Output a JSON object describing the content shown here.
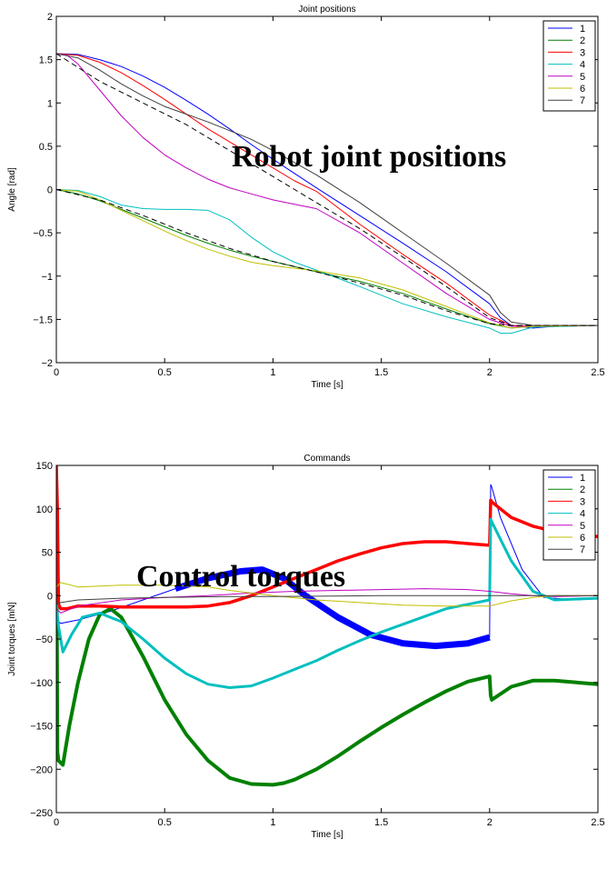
{
  "chart_data": [
    {
      "type": "line",
      "title": "Joint positions",
      "xlabel": "Time [s]",
      "ylabel": "Angle [rad]",
      "xlim": [
        0,
        2.5
      ],
      "ylim": [
        -2,
        2
      ],
      "xticks": [
        0,
        0.5,
        1,
        1.5,
        2,
        2.5
      ],
      "xtick_labels": [
        "0",
        "0.5",
        "1",
        "1.5",
        "2",
        "2.5"
      ],
      "yticks": [
        -2,
        -1.5,
        -1,
        -0.5,
        0,
        0.5,
        1,
        1.5,
        2
      ],
      "ytick_labels": [
        "−2",
        "−1.5",
        "−1",
        "−0.5",
        "0",
        "0.5",
        "1",
        "1.5",
        "2"
      ],
      "grid": false,
      "legend_position": "top-right",
      "annotation": "Robot joint positions",
      "series": [
        {
          "name": "1",
          "color": "#0000ff",
          "x": [
            0,
            0.1,
            0.2,
            0.3,
            0.4,
            0.5,
            0.6,
            0.7,
            0.8,
            0.9,
            1.0,
            1.2,
            1.4,
            1.6,
            1.8,
            2.0,
            2.05,
            2.1,
            2.2,
            2.3,
            2.5
          ],
          "y": [
            1.57,
            1.56,
            1.5,
            1.42,
            1.31,
            1.18,
            1.03,
            0.87,
            0.7,
            0.52,
            0.35,
            0.02,
            -0.3,
            -0.62,
            -0.95,
            -1.32,
            -1.48,
            -1.57,
            -1.6,
            -1.58,
            -1.57
          ]
        },
        {
          "name": "2",
          "color": "#008000",
          "x": [
            0,
            0.1,
            0.2,
            0.3,
            0.4,
            0.5,
            0.6,
            0.7,
            0.8,
            0.9,
            1.0,
            1.2,
            1.4,
            1.6,
            1.8,
            2.0,
            2.1,
            2.2,
            2.5
          ],
          "y": [
            0,
            -0.05,
            -0.13,
            -0.23,
            -0.33,
            -0.43,
            -0.53,
            -0.62,
            -0.7,
            -0.77,
            -0.83,
            -0.95,
            -1.06,
            -1.2,
            -1.38,
            -1.55,
            -1.6,
            -1.58,
            -1.57
          ]
        },
        {
          "name": "3",
          "color": "#ff0000",
          "x": [
            0,
            0.1,
            0.2,
            0.3,
            0.4,
            0.5,
            0.6,
            0.7,
            0.8,
            0.9,
            1.0,
            1.1,
            1.2,
            1.4,
            1.6,
            1.8,
            2.0,
            2.1,
            2.2,
            2.5
          ],
          "y": [
            1.57,
            1.55,
            1.47,
            1.35,
            1.2,
            1.04,
            0.87,
            0.7,
            0.55,
            0.4,
            0.25,
            0.1,
            -0.02,
            -0.4,
            -0.75,
            -1.08,
            -1.45,
            -1.57,
            -1.58,
            -1.57
          ]
        },
        {
          "name": "4",
          "color": "#00bfbf",
          "x": [
            0,
            0.1,
            0.2,
            0.3,
            0.4,
            0.5,
            0.6,
            0.7,
            0.8,
            0.9,
            1.0,
            1.1,
            1.2,
            1.4,
            1.6,
            1.8,
            2.0,
            2.05,
            2.1,
            2.2,
            2.5
          ],
          "y": [
            0,
            -0.01,
            -0.08,
            -0.18,
            -0.22,
            -0.23,
            -0.23,
            -0.24,
            -0.35,
            -0.55,
            -0.72,
            -0.84,
            -0.93,
            -1.12,
            -1.32,
            -1.47,
            -1.6,
            -1.66,
            -1.66,
            -1.59,
            -1.57
          ]
        },
        {
          "name": "5",
          "color": "#bf00bf",
          "x": [
            0,
            0.05,
            0.1,
            0.2,
            0.3,
            0.4,
            0.5,
            0.6,
            0.7,
            0.8,
            0.9,
            1.0,
            1.1,
            1.2,
            1.4,
            1.6,
            1.8,
            2.0,
            2.1,
            2.2,
            2.5
          ],
          "y": [
            1.57,
            1.55,
            1.45,
            1.15,
            0.85,
            0.6,
            0.4,
            0.25,
            0.12,
            0.02,
            -0.05,
            -0.12,
            -0.17,
            -0.22,
            -0.5,
            -0.85,
            -1.2,
            -1.5,
            -1.58,
            -1.58,
            -1.57
          ]
        },
        {
          "name": "6",
          "color": "#bfbf00",
          "x": [
            0,
            0.1,
            0.2,
            0.3,
            0.4,
            0.5,
            0.6,
            0.7,
            0.8,
            0.9,
            1.0,
            1.2,
            1.4,
            1.6,
            1.8,
            2.0,
            2.1,
            2.2,
            2.5
          ],
          "y": [
            0,
            -0.02,
            -0.12,
            -0.24,
            -0.36,
            -0.48,
            -0.59,
            -0.69,
            -0.77,
            -0.84,
            -0.88,
            -0.94,
            -1.02,
            -1.16,
            -1.35,
            -1.54,
            -1.6,
            -1.58,
            -1.57
          ]
        },
        {
          "name": "7",
          "color": "#404040",
          "x": [
            0,
            0.1,
            0.2,
            0.3,
            0.4,
            0.5,
            0.6,
            0.7,
            0.8,
            0.9,
            1.0,
            1.2,
            1.4,
            1.6,
            1.8,
            2.0,
            2.05,
            2.1,
            2.2,
            2.5
          ],
          "y": [
            1.57,
            1.52,
            1.38,
            1.22,
            1.08,
            0.96,
            0.87,
            0.78,
            0.68,
            0.58,
            0.45,
            0.17,
            -0.15,
            -0.5,
            -0.85,
            -1.22,
            -1.42,
            -1.53,
            -1.57,
            -1.57
          ]
        },
        {
          "name": "",
          "color": "#000000",
          "dashed": true,
          "x": [
            0,
            0.2,
            0.4,
            0.6,
            0.8,
            1.0,
            1.2,
            1.4,
            1.6,
            1.8,
            2.0,
            2.1,
            2.5
          ],
          "y": [
            1.57,
            1.25,
            1.0,
            0.75,
            0.45,
            0.15,
            -0.15,
            -0.45,
            -0.78,
            -1.12,
            -1.48,
            -1.57,
            -1.57
          ]
        },
        {
          "name": "",
          "color": "#000000",
          "dashed": true,
          "x": [
            0,
            0.2,
            0.4,
            0.6,
            0.8,
            1.0,
            1.2,
            1.4,
            1.6,
            1.8,
            2.0,
            2.1,
            2.5
          ],
          "y": [
            0,
            -0.12,
            -0.3,
            -0.5,
            -0.68,
            -0.83,
            -0.95,
            -1.08,
            -1.22,
            -1.4,
            -1.55,
            -1.57,
            -1.57
          ]
        }
      ]
    },
    {
      "type": "line",
      "title": "Commands",
      "xlabel": "Time [s]",
      "ylabel": "Joint torques [mN]",
      "xlim": [
        0,
        2.5
      ],
      "ylim": [
        -250,
        150
      ],
      "xticks": [
        0,
        0.5,
        1,
        1.5,
        2,
        2.5
      ],
      "xtick_labels": [
        "0",
        "0.5",
        "1",
        "1.5",
        "2",
        "2.5"
      ],
      "yticks": [
        -250,
        -200,
        -150,
        -100,
        -50,
        0,
        50,
        100,
        150
      ],
      "ytick_labels": [
        "−250",
        "−200",
        "−150",
        "−100",
        "−50",
        "0",
        "50",
        "100",
        "150"
      ],
      "grid": false,
      "legend_position": "top-right",
      "annotation": "Control torques",
      "series": [
        {
          "name": "1",
          "color": "#0000ff",
          "band": [
            2,
            4,
            4,
            8,
            10,
            8,
            4,
            2
          ],
          "x": [
            0,
            0.02,
            0.1,
            0.25,
            0.4,
            0.55,
            0.7,
            0.85,
            0.95,
            1.05,
            1.15,
            1.3,
            1.45,
            1.6,
            1.75,
            1.9,
            2.0,
            2.005,
            2.01,
            2.05,
            2.15,
            2.25,
            2.4,
            2.5
          ],
          "y": [
            -28,
            -32,
            -28,
            -18,
            -5,
            8,
            20,
            28,
            30,
            20,
            0,
            -25,
            -45,
            -55,
            -58,
            -55,
            -48,
            128,
            125,
            90,
            30,
            -2,
            -5,
            -3
          ]
        },
        {
          "name": "2",
          "color": "#008000",
          "x": [
            0,
            0.005,
            0.01,
            0.03,
            0.06,
            0.1,
            0.15,
            0.2,
            0.25,
            0.3,
            0.4,
            0.5,
            0.6,
            0.7,
            0.8,
            0.9,
            1.0,
            1.05,
            1.1,
            1.2,
            1.3,
            1.4,
            1.5,
            1.6,
            1.7,
            1.8,
            1.9,
            2.0,
            2.005,
            2.01,
            2.1,
            2.2,
            2.3,
            2.5
          ],
          "y": [
            140,
            -180,
            -190,
            -195,
            -150,
            -100,
            -50,
            -22,
            -15,
            -25,
            -70,
            -120,
            -160,
            -190,
            -210,
            -217,
            -218,
            -216,
            -212,
            -200,
            -185,
            -168,
            -152,
            -137,
            -123,
            -110,
            -99,
            -93,
            -115,
            -120,
            -105,
            -98,
            -98,
            -102
          ]
        },
        {
          "name": "3",
          "color": "#ff0000",
          "x": [
            0,
            0.005,
            0.01,
            0.02,
            0.05,
            0.1,
            0.2,
            0.3,
            0.4,
            0.5,
            0.6,
            0.7,
            0.8,
            0.9,
            1.0,
            1.1,
            1.2,
            1.3,
            1.4,
            1.5,
            1.6,
            1.7,
            1.8,
            1.9,
            2.0,
            2.005,
            2.01,
            2.05,
            2.1,
            2.2,
            2.3,
            2.4,
            2.5
          ],
          "y": [
            150,
            100,
            -10,
            -15,
            -15,
            -12,
            -12,
            -13,
            -13,
            -13,
            -13,
            -12,
            -8,
            0,
            10,
            20,
            30,
            40,
            48,
            55,
            60,
            62,
            62,
            60,
            58,
            110,
            108,
            100,
            90,
            80,
            74,
            70,
            68
          ]
        },
        {
          "name": "4",
          "color": "#00bfbf",
          "x": [
            0,
            0.01,
            0.03,
            0.07,
            0.12,
            0.2,
            0.3,
            0.4,
            0.5,
            0.6,
            0.7,
            0.8,
            0.9,
            1.0,
            1.1,
            1.2,
            1.3,
            1.4,
            1.5,
            1.6,
            1.7,
            1.8,
            1.9,
            2.0,
            2.005,
            2.01,
            2.05,
            2.1,
            2.2,
            2.3,
            2.5
          ],
          "y": [
            -10,
            -35,
            -65,
            -45,
            -25,
            -20,
            -30,
            -50,
            -72,
            -90,
            -102,
            -106,
            -104,
            -95,
            -85,
            -75,
            -63,
            -52,
            -42,
            -33,
            -24,
            -15,
            -10,
            -5,
            88,
            85,
            65,
            40,
            5,
            -5,
            -3
          ]
        },
        {
          "name": "5",
          "color": "#bf00bf",
          "x": [
            0,
            0.02,
            0.1,
            0.3,
            0.5,
            0.7,
            0.9,
            1.1,
            1.3,
            1.5,
            1.7,
            1.9,
            2.0,
            2.1,
            2.2,
            2.3,
            2.5
          ],
          "y": [
            -15,
            -20,
            -12,
            -5,
            -2,
            0,
            3,
            5,
            6,
            7,
            8,
            7,
            5,
            2,
            0,
            -1,
            0
          ]
        },
        {
          "name": "6",
          "color": "#bfbf00",
          "x": [
            0,
            0.02,
            0.1,
            0.3,
            0.5,
            0.7,
            0.8,
            1.0,
            1.2,
            1.4,
            1.6,
            1.8,
            2.0,
            2.1,
            2.2,
            2.3,
            2.5
          ],
          "y": [
            10,
            15,
            10,
            12,
            12,
            10,
            6,
            0,
            -5,
            -8,
            -11,
            -12,
            -12,
            -6,
            -2,
            0,
            0
          ]
        },
        {
          "name": "7",
          "color": "#404040",
          "x": [
            0,
            0.02,
            0.1,
            0.3,
            0.5,
            0.8,
            1.0,
            1.5,
            2.0,
            2.5
          ],
          "y": [
            -10,
            -8,
            -5,
            -3,
            -2,
            -1,
            -1,
            0,
            0,
            0
          ]
        }
      ]
    }
  ]
}
